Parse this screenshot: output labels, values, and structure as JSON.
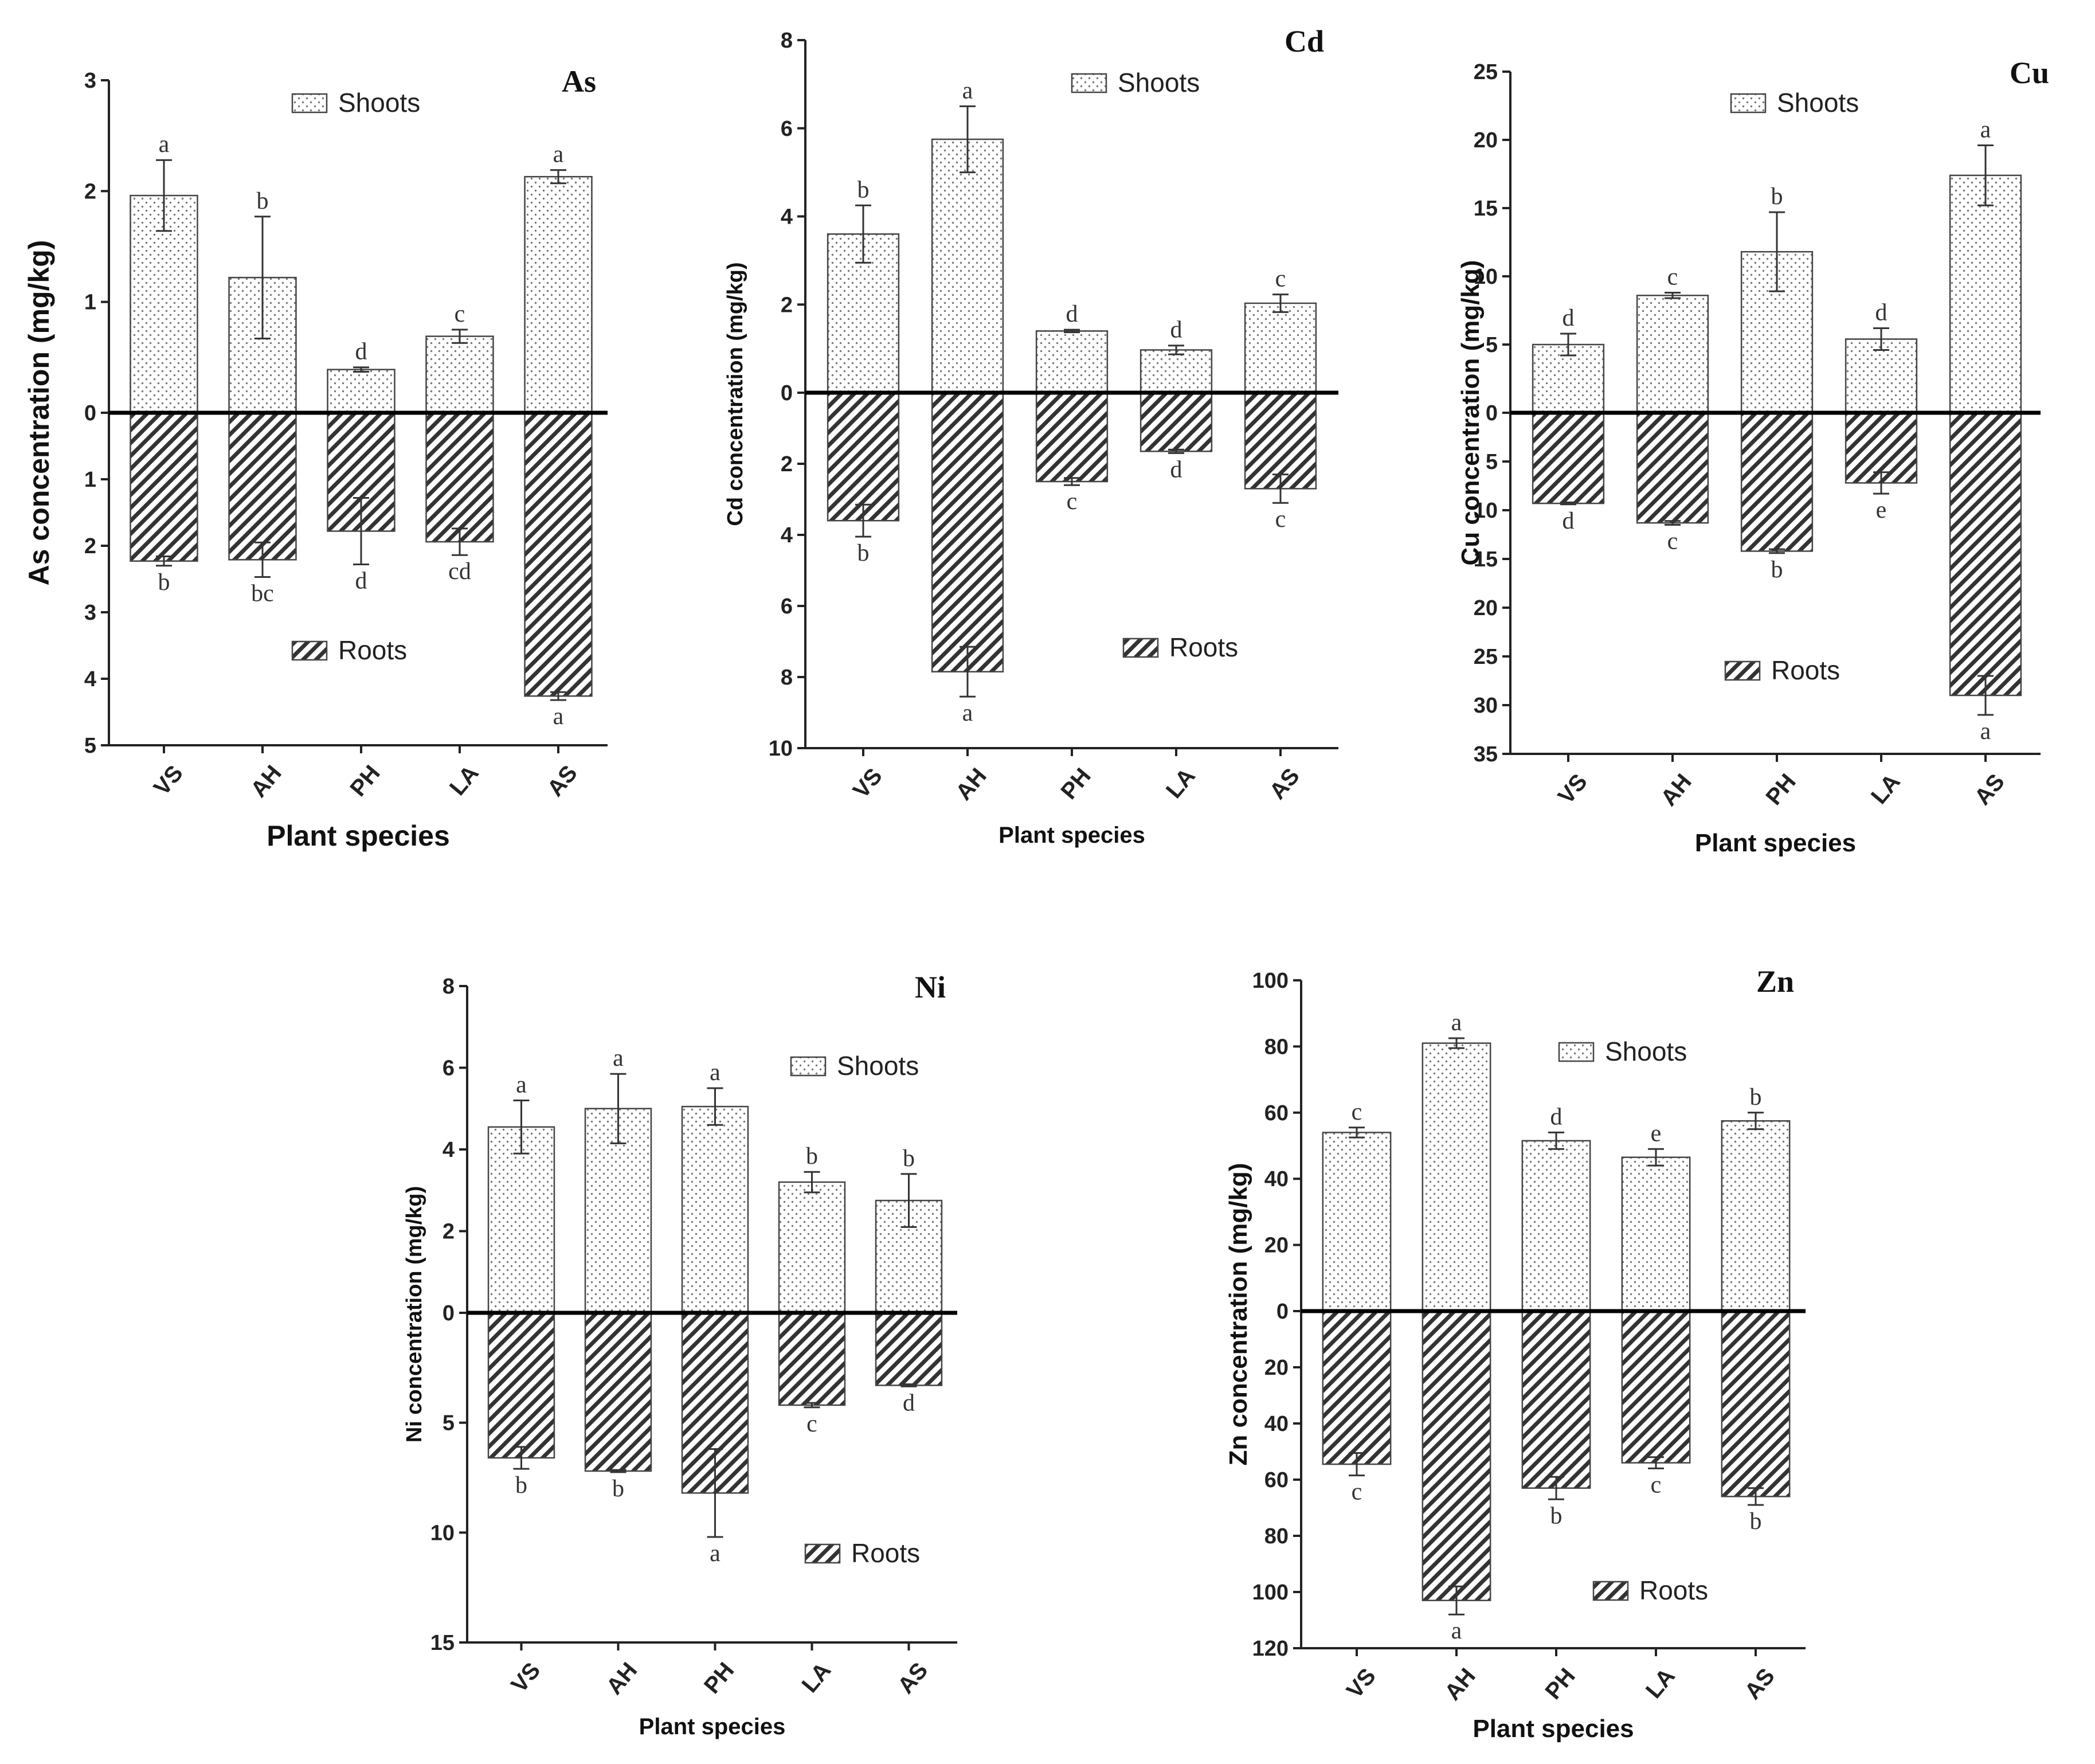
{
  "figure": {
    "legend_labels": {
      "shoots": "Shoots",
      "roots": "Roots"
    },
    "colors": {
      "axis": "#222222",
      "hatch": "#333333",
      "dots": "#777777"
    }
  },
  "chart_data": [
    {
      "type": "bar",
      "title": "As",
      "xlabel": "Plant species",
      "ylabel": "As concentration (mg/kg)",
      "categories": [
        "VS",
        "AH",
        "PH",
        "LA",
        "AS"
      ],
      "shoots": {
        "name": "Shoots",
        "values": [
          1.96,
          1.22,
          0.39,
          0.69,
          2.13
        ],
        "errors": [
          0.32,
          0.55,
          0.02,
          0.06,
          0.06
        ],
        "letters": [
          "a",
          "b",
          "d",
          "c",
          "a"
        ]
      },
      "roots": {
        "name": "Roots",
        "values": [
          2.23,
          2.21,
          1.78,
          1.94,
          4.26
        ],
        "errors": [
          0.07,
          0.26,
          0.5,
          0.2,
          0.06
        ],
        "letters": [
          "b",
          "bc",
          "d",
          "cd",
          "a"
        ]
      },
      "ylim_top": 3,
      "ylim_bottom": 5,
      "yticks_top": [
        3,
        2,
        1,
        0
      ],
      "yticks_bottom": [
        1,
        2,
        3,
        4,
        5
      ],
      "legend": {
        "shoots": "top-center",
        "roots": "lower-center"
      }
    },
    {
      "type": "bar",
      "title": "Cd",
      "xlabel": "Plant species",
      "ylabel": "Cd concentration (mg/kg)",
      "categories": [
        "VS",
        "AH",
        "PH",
        "LA",
        "AS"
      ],
      "shoots": {
        "name": "Shoots",
        "values": [
          3.6,
          5.75,
          1.4,
          0.97,
          2.03
        ],
        "errors": [
          0.65,
          0.75,
          0.03,
          0.1,
          0.2
        ],
        "letters": [
          "b",
          "a",
          "d",
          "d",
          "c"
        ]
      },
      "roots": {
        "name": "Roots",
        "values": [
          3.6,
          7.85,
          2.5,
          1.65,
          2.7
        ],
        "errors": [
          0.45,
          0.7,
          0.1,
          0.05,
          0.4
        ],
        "letters": [
          "b",
          "a",
          "c",
          "d",
          "c"
        ]
      },
      "ylim_top": 8,
      "ylim_bottom": 10,
      "yticks_top": [
        8,
        6,
        4,
        2,
        0
      ],
      "yticks_bottom": [
        2,
        4,
        6,
        8,
        10
      ],
      "legend": {
        "shoots": "top-right",
        "roots": "lower-right"
      }
    },
    {
      "type": "bar",
      "title": "Cu",
      "xlabel": "Plant species",
      "ylabel": "Cu concentration (mg/kg)",
      "categories": [
        "VS",
        "AH",
        "PH",
        "LA",
        "AS"
      ],
      "shoots": {
        "name": "Shoots",
        "values": [
          5.0,
          8.6,
          11.8,
          5.4,
          17.4
        ],
        "errors": [
          0.8,
          0.2,
          2.9,
          0.8,
          2.2
        ],
        "letters": [
          "d",
          "c",
          "b",
          "d",
          "a"
        ]
      },
      "roots": {
        "name": "Roots",
        "values": [
          9.3,
          11.3,
          14.2,
          7.2,
          29.0
        ],
        "errors": [
          0.1,
          0.2,
          0.2,
          1.1,
          2.0
        ],
        "letters": [
          "d",
          "c",
          "b",
          "e",
          "a"
        ]
      },
      "ylim_top": 25,
      "ylim_bottom": 35,
      "yticks_top": [
        25,
        20,
        15,
        10,
        5,
        0
      ],
      "yticks_bottom": [
        5,
        10,
        15,
        20,
        25,
        30,
        35
      ],
      "legend": {
        "shoots": "top-center",
        "roots": "lower-center"
      }
    },
    {
      "type": "bar",
      "title": "Ni",
      "xlabel": "Plant species",
      "ylabel": "Ni concentration (mg/kg)",
      "categories": [
        "VS",
        "AH",
        "PH",
        "LA",
        "AS"
      ],
      "shoots": {
        "name": "Shoots",
        "values": [
          4.55,
          5.0,
          5.05,
          3.2,
          2.75
        ],
        "errors": [
          0.65,
          0.85,
          0.45,
          0.25,
          0.65
        ],
        "letters": [
          "a",
          "a",
          "a",
          "b",
          "b"
        ]
      },
      "roots": {
        "name": "Roots",
        "values": [
          6.6,
          7.2,
          8.2,
          4.2,
          3.3
        ],
        "errors": [
          0.5,
          0.05,
          2.0,
          0.1,
          0.05
        ],
        "letters": [
          "b",
          "b",
          "a",
          "c",
          "d"
        ]
      },
      "ylim_top": 8,
      "ylim_bottom": 15,
      "yticks_top": [
        8,
        6,
        4,
        2,
        0
      ],
      "yticks_bottom": [
        5,
        10,
        15
      ],
      "legend": {
        "shoots": "top-right",
        "roots": "lower-right"
      }
    },
    {
      "type": "bar",
      "title": "Zn",
      "xlabel": "Plant species",
      "ylabel": "Zn concentration (mg/kg)",
      "categories": [
        "VS",
        "AH",
        "PH",
        "LA",
        "AS"
      ],
      "shoots": {
        "name": "Shoots",
        "values": [
          54,
          81,
          51.5,
          46.5,
          57.5
        ],
        "errors": [
          1.5,
          1.5,
          2.5,
          2.5,
          2.5
        ],
        "letters": [
          "c",
          "a",
          "d",
          "e",
          "b"
        ]
      },
      "roots": {
        "name": "Roots",
        "values": [
          54.5,
          103,
          63,
          54,
          66
        ],
        "errors": [
          4,
          5,
          4,
          2,
          3
        ],
        "letters": [
          "c",
          "a",
          "b",
          "c",
          "b"
        ]
      },
      "ylim_top": 100,
      "ylim_bottom": 120,
      "yticks_top": [
        100,
        80,
        60,
        40,
        20,
        0
      ],
      "yticks_bottom": [
        20,
        40,
        60,
        80,
        100,
        120
      ],
      "legend": {
        "shoots": "top-center",
        "roots": "lower-center"
      }
    }
  ]
}
